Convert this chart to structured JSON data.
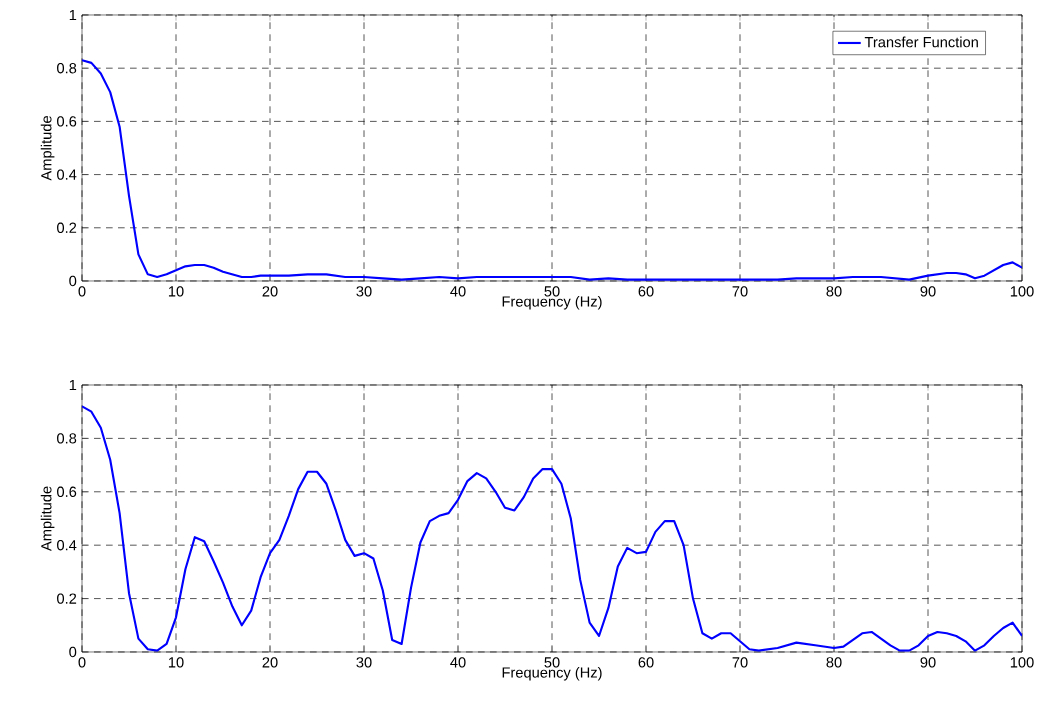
{
  "chart_data": [
    {
      "type": "line",
      "xlabel": "Frequency (Hz)",
      "ylabel": "Amplitude",
      "xlim": [
        0,
        100
      ],
      "ylim": [
        0,
        1
      ],
      "xticks": [
        0,
        10,
        20,
        30,
        40,
        50,
        60,
        70,
        80,
        90,
        100
      ],
      "yticks": [
        0,
        0.2,
        0.4,
        0.6,
        0.8,
        1
      ],
      "grid": true,
      "legend": "top right",
      "series": [
        {
          "name": "Transfer Function",
          "color": "#0000ff",
          "x": [
            0,
            1,
            2,
            3,
            4,
            5,
            6,
            7,
            8,
            9,
            10,
            11,
            12,
            13,
            14,
            15,
            16,
            17,
            18,
            19,
            20,
            22,
            24,
            26,
            28,
            30,
            32,
            34,
            36,
            38,
            40,
            42,
            46,
            50,
            52,
            54,
            56,
            58,
            60,
            66,
            70,
            74,
            76,
            80,
            82,
            85,
            88,
            90,
            92,
            93,
            94,
            95,
            96,
            98,
            99,
            100
          ],
          "values": [
            0.83,
            0.82,
            0.78,
            0.71,
            0.58,
            0.32,
            0.1,
            0.025,
            0.015,
            0.025,
            0.04,
            0.055,
            0.06,
            0.06,
            0.05,
            0.035,
            0.025,
            0.015,
            0.015,
            0.02,
            0.02,
            0.02,
            0.025,
            0.025,
            0.015,
            0.015,
            0.01,
            0.005,
            0.01,
            0.015,
            0.01,
            0.015,
            0.015,
            0.015,
            0.015,
            0.005,
            0.01,
            0.005,
            0.005,
            0.005,
            0.005,
            0.005,
            0.01,
            0.01,
            0.015,
            0.015,
            0.005,
            0.02,
            0.03,
            0.03,
            0.025,
            0.01,
            0.02,
            0.06,
            0.07,
            0.05
          ]
        }
      ]
    },
    {
      "type": "line",
      "xlabel": "Frequency (Hz)",
      "ylabel": "Amplitude",
      "xlim": [
        0,
        100
      ],
      "ylim": [
        0,
        1
      ],
      "xticks": [
        0,
        10,
        20,
        30,
        40,
        50,
        60,
        70,
        80,
        90,
        100
      ],
      "yticks": [
        0,
        0.2,
        0.4,
        0.6,
        0.8,
        1
      ],
      "grid": true,
      "series": [
        {
          "color": "#0000ff",
          "x": [
            0,
            1,
            2,
            3,
            4,
            5,
            6,
            7,
            8,
            9,
            10,
            11,
            12,
            13,
            14,
            15,
            16,
            17,
            18,
            19,
            20,
            21,
            22,
            23,
            24,
            25,
            26,
            27,
            28,
            29,
            30,
            31,
            32,
            33,
            34,
            35,
            36,
            37,
            38,
            39,
            40,
            41,
            42,
            43,
            44,
            45,
            46,
            47,
            48,
            49,
            50,
            51,
            52,
            53,
            54,
            55,
            56,
            57,
            58,
            59,
            60,
            61,
            62,
            63,
            64,
            65,
            66,
            67,
            68,
            69,
            70,
            71,
            72,
            74,
            76,
            78,
            80,
            81,
            82,
            83,
            84,
            86,
            87,
            88,
            89,
            90,
            91,
            92,
            93,
            94,
            95,
            96,
            97,
            98,
            99,
            100
          ],
          "values": [
            0.92,
            0.9,
            0.84,
            0.72,
            0.52,
            0.22,
            0.05,
            0.01,
            0.005,
            0.03,
            0.13,
            0.31,
            0.43,
            0.415,
            0.34,
            0.26,
            0.17,
            0.1,
            0.155,
            0.28,
            0.37,
            0.42,
            0.51,
            0.61,
            0.675,
            0.675,
            0.63,
            0.53,
            0.42,
            0.36,
            0.37,
            0.35,
            0.23,
            0.045,
            0.03,
            0.24,
            0.41,
            0.49,
            0.51,
            0.52,
            0.57,
            0.64,
            0.67,
            0.65,
            0.6,
            0.54,
            0.53,
            0.58,
            0.65,
            0.685,
            0.685,
            0.63,
            0.5,
            0.27,
            0.11,
            0.06,
            0.165,
            0.32,
            0.39,
            0.37,
            0.375,
            0.45,
            0.49,
            0.49,
            0.4,
            0.2,
            0.07,
            0.05,
            0.07,
            0.07,
            0.04,
            0.01,
            0.005,
            0.015,
            0.035,
            0.025,
            0.015,
            0.02,
            0.045,
            0.07,
            0.075,
            0.025,
            0.005,
            0.005,
            0.025,
            0.06,
            0.075,
            0.07,
            0.06,
            0.04,
            0.005,
            0.025,
            0.06,
            0.09,
            0.11,
            0.06
          ]
        }
      ]
    }
  ]
}
